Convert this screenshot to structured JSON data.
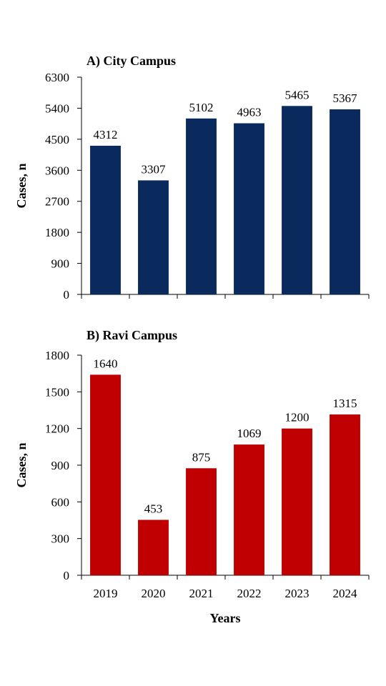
{
  "chart_data": [
    {
      "type": "bar",
      "title": "A) City Campus",
      "ylabel": "Cases, n",
      "xlabel": "",
      "categories": [
        "2019",
        "2020",
        "2021",
        "2022",
        "2023",
        "2024"
      ],
      "values": [
        4312,
        3307,
        5102,
        4963,
        5465,
        5367
      ],
      "data_labels": [
        "4312",
        "3307",
        "5102",
        "4963",
        "5465",
        "5367"
      ],
      "ylim": [
        0,
        6300
      ],
      "yticks": [
        "0",
        "900",
        "1800",
        "2700",
        "3600",
        "4500",
        "5400",
        "6300"
      ],
      "show_xticklabels": false,
      "grid": false,
      "color": "#0a2a5e"
    },
    {
      "type": "bar",
      "title": "B) Ravi Campus",
      "ylabel": "Cases, n",
      "xlabel": "Years",
      "categories": [
        "2019",
        "2020",
        "2021",
        "2022",
        "2023",
        "2024"
      ],
      "values": [
        1640,
        453,
        875,
        1069,
        1200,
        1315
      ],
      "data_labels": [
        "1640",
        "453",
        "875",
        "1069",
        "1200",
        "1315"
      ],
      "ylim": [
        0,
        1800
      ],
      "yticks": [
        "0",
        "300",
        "600",
        "900",
        "1200",
        "1500",
        "1800"
      ],
      "show_xticklabels": true,
      "grid": false,
      "color": "#c00000"
    }
  ]
}
